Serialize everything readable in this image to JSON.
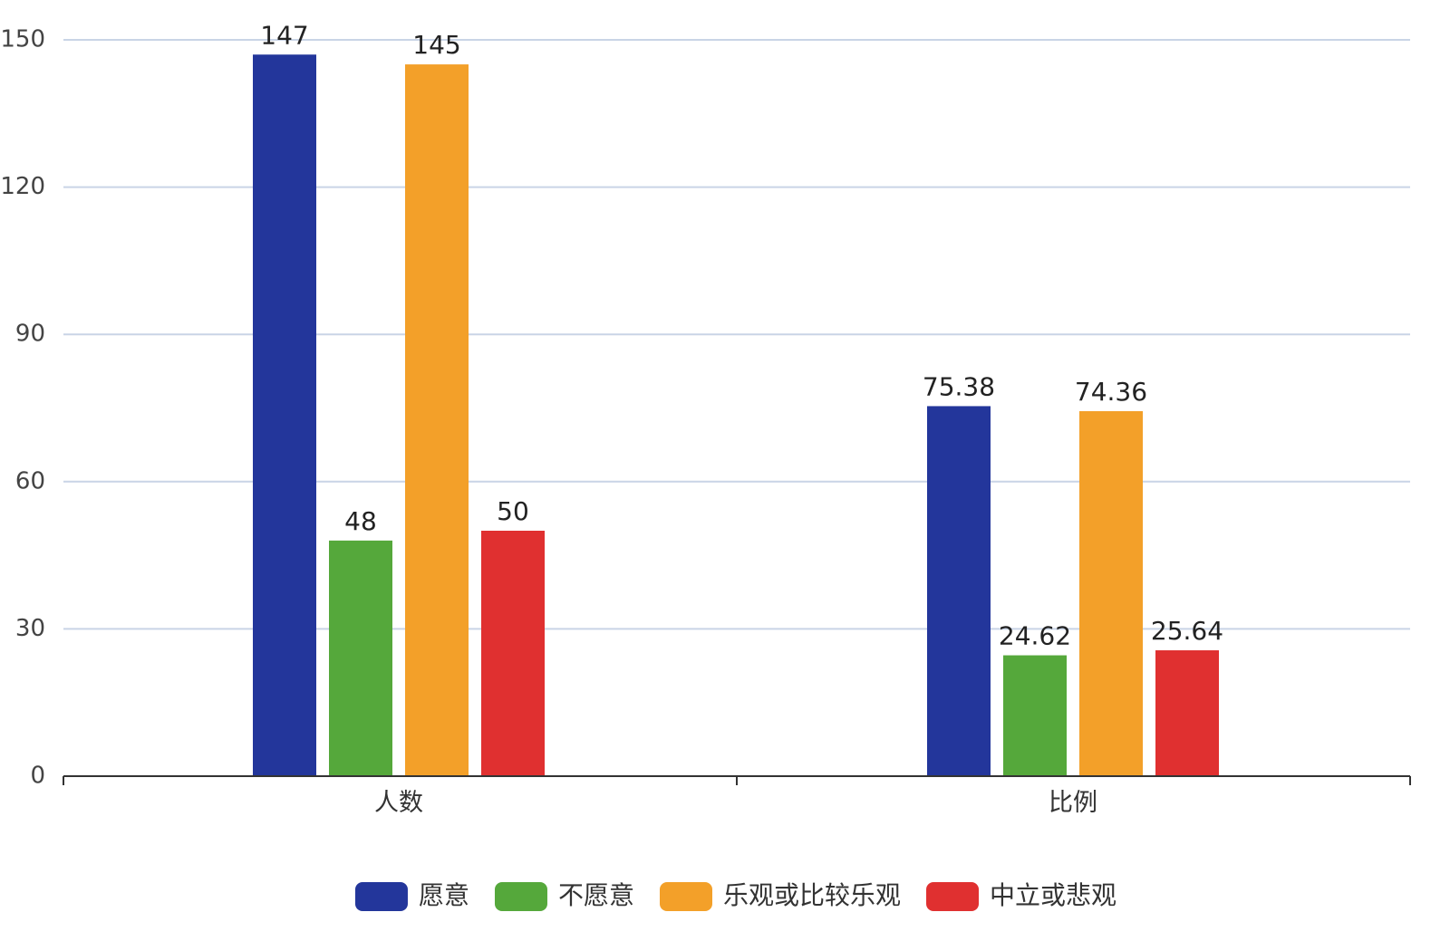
{
  "chart_data": {
    "type": "bar",
    "categories": [
      "人数",
      "比例"
    ],
    "series": [
      {
        "name": "愿意",
        "values": [
          147,
          75.38
        ],
        "color": "#23369b"
      },
      {
        "name": "不愿意",
        "values": [
          48,
          24.62
        ],
        "color": "#55a83b"
      },
      {
        "name": "乐观或比较乐观",
        "values": [
          145,
          74.36
        ],
        "color": "#f3a029"
      },
      {
        "name": "中立或悲观",
        "values": [
          50,
          25.64
        ],
        "color": "#e03030"
      }
    ],
    "ylim": [
      0,
      150
    ],
    "yticks": [
      0,
      30,
      60,
      90,
      120,
      150
    ],
    "grid": true,
    "legend_position": "bottom-center",
    "data_labels": true
  },
  "colors": {
    "grid": "#c9d4e6",
    "axis": "#333333"
  }
}
